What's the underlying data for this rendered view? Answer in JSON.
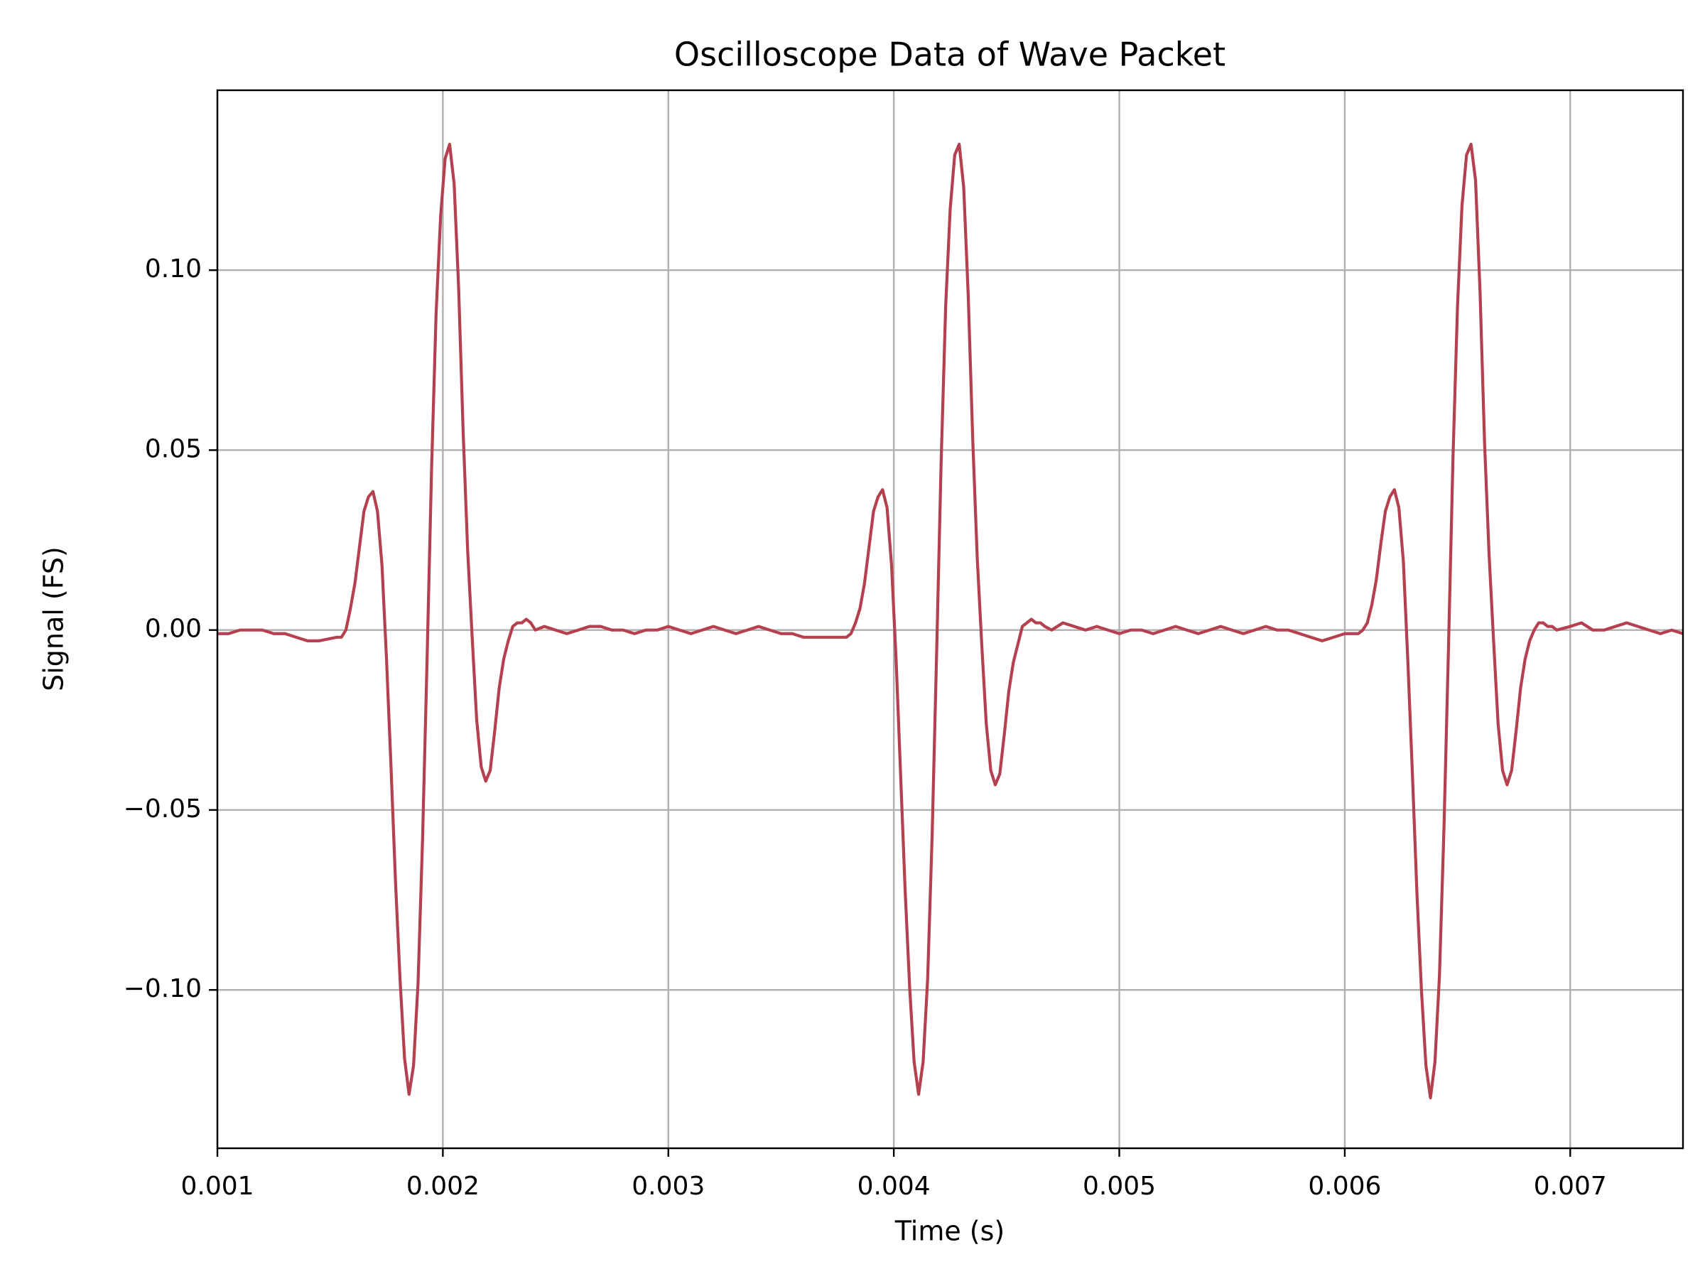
{
  "chart_data": {
    "type": "line",
    "title": "Oscilloscope Data of Wave Packet",
    "x_label": "Time (s)",
    "y_label": "Signal (FS)",
    "color": "#b5404f",
    "grid": true,
    "xlim": [
      0.001,
      0.0075
    ],
    "ylim": [
      -0.144,
      0.15
    ],
    "xticks": [
      0.001,
      0.002,
      0.003,
      0.004,
      0.005,
      0.006,
      0.007
    ],
    "yticks": [
      {
        "value": -0.1,
        "label": "−0.10"
      },
      {
        "value": -0.05,
        "label": "−0.05"
      },
      {
        "value": 0,
        "label": "0.00"
      },
      0.05,
      {
        "value": 0.1,
        "label": "0.10"
      }
    ],
    "x": [
      0.001,
      0.00105,
      0.0011,
      0.00115,
      0.0012,
      0.00125,
      0.0013,
      0.00135,
      0.0014,
      0.00145,
      0.00153,
      0.00155,
      0.00157,
      0.00159,
      0.00161,
      0.00163,
      0.00165,
      0.00167,
      0.00169,
      0.00171,
      0.00173,
      0.00175,
      0.00177,
      0.00179,
      0.00181,
      0.00183,
      0.00185,
      0.00187,
      0.00189,
      0.00191,
      0.00193,
      0.00195,
      0.00197,
      0.00199,
      0.00201,
      0.00203,
      0.00205,
      0.00207,
      0.00209,
      0.00211,
      0.00213,
      0.00215,
      0.00217,
      0.00219,
      0.00221,
      0.00223,
      0.00225,
      0.00227,
      0.00229,
      0.00231,
      0.00233,
      0.00235,
      0.00237,
      0.00239,
      0.00241,
      0.00245,
      0.0025,
      0.00255,
      0.0026,
      0.00265,
      0.0027,
      0.00275,
      0.0028,
      0.00285,
      0.0029,
      0.00295,
      0.003,
      0.00305,
      0.0031,
      0.00315,
      0.0032,
      0.00325,
      0.0033,
      0.00335,
      0.0034,
      0.00345,
      0.0035,
      0.00355,
      0.0036,
      0.00365,
      0.0037,
      0.00375,
      0.00379,
      0.00381,
      0.00383,
      0.00385,
      0.00387,
      0.00389,
      0.00391,
      0.00393,
      0.00395,
      0.00397,
      0.00399,
      0.00401,
      0.00403,
      0.00405,
      0.00407,
      0.00409,
      0.00411,
      0.00413,
      0.00415,
      0.00417,
      0.00419,
      0.00421,
      0.00423,
      0.00425,
      0.00427,
      0.00429,
      0.00431,
      0.00433,
      0.00435,
      0.00437,
      0.00439,
      0.00441,
      0.00443,
      0.00445,
      0.00447,
      0.00449,
      0.00451,
      0.00453,
      0.00455,
      0.00457,
      0.00459,
      0.00461,
      0.00463,
      0.00465,
      0.00467,
      0.0047,
      0.00475,
      0.0048,
      0.00485,
      0.0049,
      0.00495,
      0.005,
      0.00505,
      0.0051,
      0.00515,
      0.0052,
      0.00525,
      0.0053,
      0.00535,
      0.0054,
      0.00545,
      0.0055,
      0.00555,
      0.0056,
      0.00565,
      0.0057,
      0.00575,
      0.0058,
      0.00585,
      0.0059,
      0.00595,
      0.006,
      0.00606,
      0.00608,
      0.0061,
      0.00612,
      0.00614,
      0.00616,
      0.00618,
      0.0062,
      0.00622,
      0.00624,
      0.00626,
      0.00628,
      0.0063,
      0.00632,
      0.00634,
      0.00636,
      0.00638,
      0.0064,
      0.00642,
      0.00644,
      0.00646,
      0.00648,
      0.0065,
      0.00652,
      0.00654,
      0.00656,
      0.00658,
      0.0066,
      0.00662,
      0.00664,
      0.00666,
      0.00668,
      0.0067,
      0.00672,
      0.00674,
      0.00676,
      0.00678,
      0.0068,
      0.00682,
      0.00684,
      0.00686,
      0.00688,
      0.0069,
      0.00692,
      0.00694,
      0.007,
      0.00705,
      0.0071,
      0.00715,
      0.0072,
      0.00725,
      0.0073,
      0.00735,
      0.0074,
      0.00745,
      0.0075
    ],
    "values": [
      -0.001,
      -0.001,
      0.0,
      0.0,
      0.0,
      -0.001,
      -0.001,
      -0.002,
      -0.003,
      -0.003,
      -0.002,
      -0.002,
      0.0,
      0.006,
      0.013,
      0.023,
      0.033,
      0.037,
      0.0385,
      0.033,
      0.018,
      -0.008,
      -0.038,
      -0.07,
      -0.097,
      -0.119,
      -0.129,
      -0.121,
      -0.098,
      -0.058,
      -0.008,
      0.045,
      0.088,
      0.115,
      0.131,
      0.135,
      0.124,
      0.095,
      0.055,
      0.022,
      -0.002,
      -0.025,
      -0.038,
      -0.042,
      -0.039,
      -0.028,
      -0.016,
      -0.008,
      -0.003,
      0.001,
      0.002,
      0.002,
      0.003,
      0.002,
      0.0,
      0.001,
      0.0,
      -0.001,
      0.0,
      0.001,
      0.001,
      0.0,
      0.0,
      -0.001,
      0.0,
      0.0,
      0.001,
      0.0,
      -0.001,
      0.0,
      0.001,
      0.0,
      -0.001,
      0.0,
      0.001,
      0.0,
      -0.001,
      -0.001,
      -0.002,
      -0.002,
      -0.002,
      -0.002,
      -0.002,
      -0.001,
      0.002,
      0.006,
      0.013,
      0.023,
      0.033,
      0.037,
      0.039,
      0.034,
      0.018,
      -0.008,
      -0.04,
      -0.072,
      -0.099,
      -0.12,
      -0.129,
      -0.12,
      -0.097,
      -0.057,
      -0.006,
      0.047,
      0.09,
      0.117,
      0.132,
      0.135,
      0.123,
      0.093,
      0.053,
      0.02,
      -0.004,
      -0.026,
      -0.039,
      -0.043,
      -0.04,
      -0.029,
      -0.017,
      -0.009,
      -0.004,
      0.001,
      0.002,
      0.003,
      0.002,
      0.002,
      0.001,
      0.0,
      0.002,
      0.001,
      0.0,
      0.001,
      0.0,
      -0.001,
      0.0,
      0.0,
      -0.001,
      0.0,
      0.001,
      0.0,
      -0.001,
      0.0,
      0.001,
      0.0,
      -0.001,
      0.0,
      0.001,
      0.0,
      0.0,
      -0.001,
      -0.002,
      -0.003,
      -0.002,
      -0.001,
      -0.001,
      0.0,
      0.002,
      0.007,
      0.014,
      0.024,
      0.033,
      0.037,
      0.039,
      0.034,
      0.019,
      -0.009,
      -0.04,
      -0.073,
      -0.1,
      -0.121,
      -0.13,
      -0.12,
      -0.096,
      -0.055,
      -0.005,
      0.048,
      0.09,
      0.118,
      0.132,
      0.135,
      0.125,
      0.094,
      0.052,
      0.021,
      -0.003,
      -0.026,
      -0.039,
      -0.043,
      -0.039,
      -0.028,
      -0.016,
      -0.008,
      -0.003,
      0.0,
      0.002,
      0.002,
      0.001,
      0.001,
      0.0,
      0.001,
      0.002,
      0.0,
      0.0,
      0.001,
      0.002,
      0.001,
      0.0,
      -0.001,
      0.0,
      -0.001
    ]
  }
}
